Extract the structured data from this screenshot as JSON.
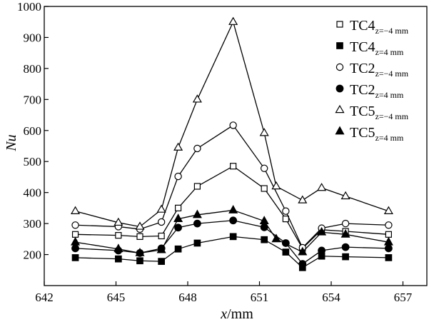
{
  "chart_data": {
    "type": "line",
    "title": "",
    "xlabel_italic": "x",
    "xlabel_unit": "/mm",
    "ylabel": "Nu",
    "xlim": [
      642,
      658
    ],
    "ylim": [
      100,
      1000
    ],
    "xticks": [
      642,
      645,
      648,
      651,
      654,
      657
    ],
    "yticks": [
      200,
      300,
      400,
      500,
      600,
      700,
      800,
      900,
      1000
    ],
    "x": [
      643.3,
      645.1,
      646.0,
      646.9,
      647.6,
      648.4,
      649.9,
      651.2,
      651.7,
      652.1,
      652.8,
      653.6,
      654.6,
      656.4
    ],
    "series": [
      {
        "name": "TC4 z=−4 mm",
        "label_main": "TC4",
        "label_sub": "z=−4 mm",
        "marker": "square-open",
        "x": [
          643.3,
          645.1,
          646.0,
          646.9,
          647.6,
          648.4,
          649.9,
          651.2,
          652.1,
          652.8,
          653.6,
          654.6,
          656.4
        ],
        "values": [
          265,
          262,
          258,
          260,
          350,
          420,
          485,
          413,
          315,
          220,
          280,
          275,
          265
        ]
      },
      {
        "name": "TC4 z=4 mm",
        "label_main": "TC4",
        "label_sub": "z=4 mm",
        "marker": "square-filled",
        "x": [
          643.3,
          645.1,
          646.0,
          646.9,
          647.6,
          648.4,
          649.9,
          651.2,
          652.1,
          652.8,
          653.6,
          654.6,
          656.4
        ],
        "values": [
          190,
          186,
          180,
          178,
          218,
          237,
          258,
          248,
          208,
          158,
          195,
          193,
          190
        ]
      },
      {
        "name": "TC2 z=−4 mm",
        "label_main": "TC2",
        "label_sub": "z=−4 mm",
        "marker": "circle-open",
        "x": [
          643.3,
          645.1,
          646.0,
          646.9,
          647.6,
          648.4,
          649.9,
          651.2,
          652.1,
          652.8,
          653.6,
          654.6,
          656.4
        ],
        "values": [
          295,
          290,
          282,
          305,
          452,
          542,
          617,
          478,
          340,
          222,
          285,
          300,
          295
        ]
      },
      {
        "name": "TC2 z=4 mm",
        "label_main": "TC2",
        "label_sub": "z=4 mm",
        "marker": "circle-filled",
        "x": [
          643.3,
          645.1,
          646.0,
          646.9,
          647.6,
          648.4,
          649.9,
          651.2,
          652.1,
          652.8,
          653.6,
          654.6,
          656.4
        ],
        "values": [
          220,
          213,
          205,
          220,
          287,
          300,
          310,
          288,
          237,
          170,
          213,
          224,
          220
        ]
      },
      {
        "name": "TC5 z=−4 mm",
        "label_main": "TC5",
        "label_sub": "z=−4 mm",
        "marker": "triangle-open",
        "x": [
          643.3,
          645.1,
          646.0,
          646.9,
          647.6,
          648.4,
          649.9,
          651.2,
          651.7,
          652.8,
          653.6,
          654.6,
          656.4
        ],
        "values": [
          340,
          303,
          290,
          345,
          545,
          700,
          950,
          592,
          420,
          375,
          415,
          388,
          340
        ]
      },
      {
        "name": "TC5 z=4 mm",
        "label_main": "TC5",
        "label_sub": "z=4 mm",
        "marker": "triangle-filled",
        "x": [
          643.3,
          645.1,
          646.0,
          646.9,
          647.6,
          648.4,
          649.9,
          651.2,
          651.7,
          652.8,
          653.6,
          654.6,
          656.4
        ],
        "values": [
          240,
          218,
          205,
          215,
          315,
          328,
          343,
          308,
          250,
          208,
          272,
          265,
          240
        ]
      }
    ],
    "legend_position": "top-right",
    "grid": false
  }
}
